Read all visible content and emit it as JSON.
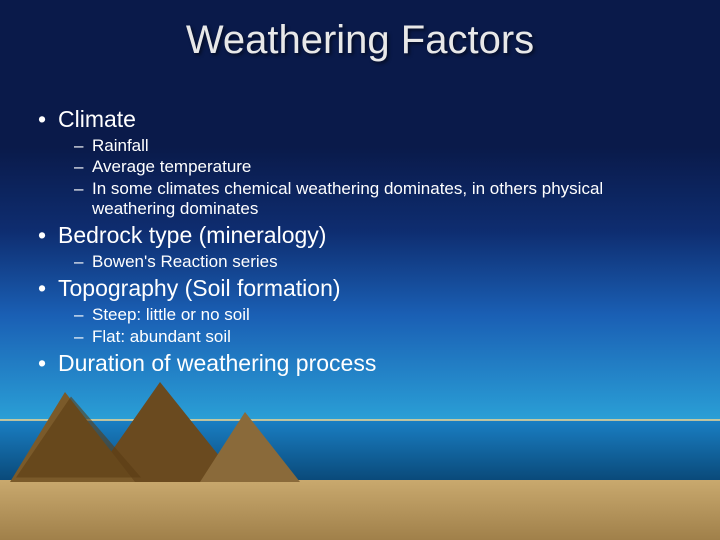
{
  "slide": {
    "title": "Weathering Factors",
    "title_color": "#e8e8e8",
    "title_fontsize": 40,
    "bullets": [
      {
        "text": "Climate",
        "sub": [
          "Rainfall",
          "Average temperature",
          "In some climates chemical weathering dominates, in others physical weathering dominates"
        ]
      },
      {
        "text": "Bedrock type (mineralogy)",
        "sub": [
          "Bowen's Reaction series"
        ]
      },
      {
        "text": "Topography (Soil formation)",
        "sub": [
          "Steep: little or no soil",
          "Flat: abundant soil"
        ]
      },
      {
        "text": "Duration of weathering process",
        "sub": []
      }
    ],
    "bullet_fontsize_l1": 23,
    "bullet_fontsize_l2": 17,
    "text_color": "#ffffff",
    "background": {
      "sky_gradient": [
        "#0a1a4a",
        "#0e2d70",
        "#1a5fb4",
        "#2a9fd6"
      ],
      "water_gradient": [
        "#1a7fc4",
        "#0a4a7a"
      ],
      "sand_gradient": [
        "#c9a96e",
        "#a0804a"
      ],
      "mountain_colors": [
        "#7a5a2a",
        "#6a4a1f",
        "#8a6a3a"
      ]
    }
  }
}
